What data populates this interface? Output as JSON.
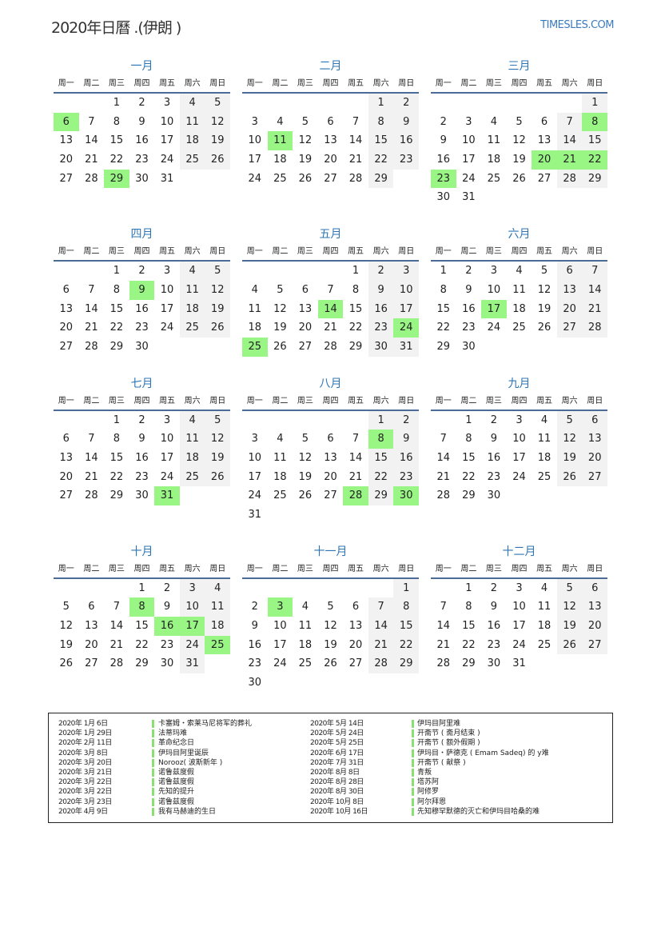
{
  "header": {
    "title": "2020年日曆 .(伊朗 )",
    "site": "TIMESLES.COM"
  },
  "colors": {
    "accent": "#2e75b6",
    "holiday": "#99f584",
    "weekend": "#f2f2f2"
  },
  "year": 2020,
  "weekdays": [
    "周一",
    "周二",
    "周三",
    "周四",
    "周五",
    "周六",
    "周日"
  ],
  "months": [
    {
      "name": "一月",
      "holidays": [
        6,
        29
      ]
    },
    {
      "name": "二月",
      "holidays": [
        11
      ]
    },
    {
      "name": "三月",
      "holidays": [
        8,
        20,
        21,
        22,
        23
      ]
    },
    {
      "name": "四月",
      "holidays": [
        9
      ]
    },
    {
      "name": "五月",
      "holidays": [
        14,
        24,
        25
      ]
    },
    {
      "name": "六月",
      "holidays": [
        17
      ]
    },
    {
      "name": "七月",
      "holidays": [
        31
      ]
    },
    {
      "name": "八月",
      "holidays": [
        8,
        28,
        30
      ]
    },
    {
      "name": "九月",
      "holidays": []
    },
    {
      "name": "十月",
      "holidays": [
        8,
        16,
        17,
        25
      ]
    },
    {
      "name": "十一月",
      "holidays": [
        3
      ]
    },
    {
      "name": "十二月",
      "holidays": []
    }
  ],
  "legend": [
    [
      {
        "date": "2020年 1月 6日",
        "name": "卡塞姆・索莱马尼将军的葬礼"
      },
      {
        "date": "2020年 1月 29日",
        "name": "法蒂玛难"
      },
      {
        "date": "2020年 2月 11日",
        "name": "革命纪念日"
      },
      {
        "date": "2020年 3月 8日",
        "name": "伊玛目阿里诞辰"
      },
      {
        "date": "2020年 3月 20日",
        "name": "Norooz( 波斯新年 )"
      },
      {
        "date": "2020年 3月 21日",
        "name": "诺鲁兹度假"
      },
      {
        "date": "2020年 3月 22日",
        "name": "诺鲁兹度假"
      },
      {
        "date": "2020年 3月 22日",
        "name": "先知的提升"
      },
      {
        "date": "2020年 3月 23日",
        "name": "诺鲁兹度假"
      },
      {
        "date": "2020年 4月 9日",
        "name": "我有马赫迪的生日"
      }
    ],
    [
      {
        "date": "2020年 5月 14日",
        "name": "伊玛目阿里难"
      },
      {
        "date": "2020年 5月 24日",
        "name": "开斋节 ( 斋月结束 )"
      },
      {
        "date": "2020年 5月 25日",
        "name": "开斋节 ( 额外假期 )"
      },
      {
        "date": "2020年 6月 17日",
        "name": "伊玛目・萨德克 ( Emam Sadeq) 的 y难"
      },
      {
        "date": "2020年 7月 31日",
        "name": "开斋节 ( 献祭 )"
      },
      {
        "date": "2020年 8月 8日",
        "name": "青叛"
      },
      {
        "date": "2020年 8月 28日",
        "name": "塔苏阿"
      },
      {
        "date": "2020年 8月 30日",
        "name": "阿修罗"
      },
      {
        "date": "2020年 10月 8日",
        "name": "阿尔拜恩"
      },
      {
        "date": "2020年 10月 16日",
        "name": "先知穆罕默德的灭亡和伊玛目哈桑的难"
      }
    ]
  ]
}
